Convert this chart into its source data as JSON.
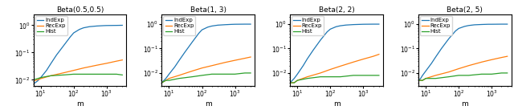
{
  "subplots": [
    {
      "title": "Beta(0.5,0.5)",
      "ylim": [
        0.006,
        2.5
      ],
      "yticks": [
        0.01,
        0.1,
        1.0
      ],
      "yticklabels": [
        "$10^{-2}$",
        "$10^{-1}$",
        "$10^0$"
      ],
      "IndExp": {
        "x": [
          6,
          8,
          10,
          15,
          20,
          30,
          50,
          80,
          100,
          150,
          200,
          300,
          500,
          800,
          1000,
          2000,
          3000
        ],
        "y": [
          0.007,
          0.009,
          0.012,
          0.022,
          0.038,
          0.08,
          0.18,
          0.38,
          0.52,
          0.7,
          0.8,
          0.88,
          0.93,
          0.96,
          0.97,
          0.98,
          0.99
        ]
      },
      "RecExp": {
        "x": [
          6,
          8,
          10,
          20,
          50,
          100,
          200,
          500,
          1000,
          2000,
          3000
        ],
        "y": [
          0.009,
          0.01,
          0.011,
          0.014,
          0.018,
          0.022,
          0.027,
          0.034,
          0.04,
          0.048,
          0.053
        ]
      },
      "Hist": {
        "x": [
          6,
          8,
          10,
          20,
          50,
          100,
          200,
          500,
          1000,
          2000,
          3000
        ],
        "y": [
          0.01,
          0.011,
          0.012,
          0.014,
          0.015,
          0.016,
          0.016,
          0.016,
          0.016,
          0.016,
          0.015
        ]
      }
    },
    {
      "title": "Beta(1, 3)",
      "ylim": [
        0.003,
        2.5
      ],
      "yticks": [
        0.01,
        0.1,
        1.0
      ],
      "yticklabels": [
        "$10^{-2}$",
        "$10^{-1}$",
        "$10^0$"
      ],
      "IndExp": {
        "x": [
          6,
          7,
          8,
          10,
          15,
          20,
          30,
          50,
          80,
          100,
          150,
          200,
          300,
          500,
          800,
          1000,
          2000,
          3000
        ],
        "y": [
          0.004,
          0.005,
          0.006,
          0.009,
          0.018,
          0.032,
          0.07,
          0.18,
          0.42,
          0.58,
          0.75,
          0.83,
          0.9,
          0.94,
          0.97,
          0.98,
          0.99,
          0.99
        ]
      },
      "RecExp": {
        "x": [
          6,
          8,
          10,
          20,
          50,
          100,
          200,
          500,
          1000,
          2000,
          3000
        ],
        "y": [
          0.004,
          0.005,
          0.006,
          0.008,
          0.012,
          0.016,
          0.02,
          0.027,
          0.033,
          0.04,
          0.045
        ]
      },
      "Hist": {
        "x": [
          6,
          8,
          10,
          20,
          50,
          100,
          200,
          500,
          1000,
          2000,
          3000
        ],
        "y": [
          0.004,
          0.005,
          0.005,
          0.006,
          0.007,
          0.008,
          0.009,
          0.009,
          0.009,
          0.01,
          0.01
        ]
      }
    },
    {
      "title": "Beta(2, 2)",
      "ylim": [
        0.003,
        2.5
      ],
      "yticks": [
        0.01,
        0.1,
        1.0
      ],
      "yticklabels": [
        "$10^{-2}$",
        "$10^{-1}$",
        "$10^0$"
      ],
      "IndExp": {
        "x": [
          6,
          7,
          8,
          10,
          15,
          20,
          30,
          50,
          80,
          100,
          150,
          200,
          300,
          500,
          800,
          1000,
          2000,
          3000
        ],
        "y": [
          0.004,
          0.005,
          0.006,
          0.009,
          0.02,
          0.038,
          0.085,
          0.22,
          0.48,
          0.62,
          0.78,
          0.85,
          0.91,
          0.95,
          0.97,
          0.98,
          0.99,
          0.99
        ]
      },
      "RecExp": {
        "x": [
          6,
          8,
          10,
          20,
          50,
          100,
          200,
          500,
          1000,
          2000,
          3000
        ],
        "y": [
          0.004,
          0.004,
          0.005,
          0.007,
          0.01,
          0.014,
          0.019,
          0.028,
          0.037,
          0.048,
          0.058
        ]
      },
      "Hist": {
        "x": [
          6,
          8,
          10,
          20,
          50,
          100,
          200,
          500,
          1000,
          2000,
          3000
        ],
        "y": [
          0.004,
          0.004,
          0.005,
          0.006,
          0.007,
          0.007,
          0.007,
          0.008,
          0.008,
          0.008,
          0.008
        ]
      }
    },
    {
      "title": "Beta(2, 5)",
      "ylim": [
        0.003,
        2.5
      ],
      "yticks": [
        0.01,
        0.1,
        1.0
      ],
      "yticklabels": [
        "$10^{-2}$",
        "$10^{-1}$",
        "$10^0$"
      ],
      "IndExp": {
        "x": [
          6,
          7,
          8,
          10,
          15,
          20,
          30,
          50,
          80,
          100,
          150,
          200,
          300,
          500,
          800,
          1000,
          2000,
          3000
        ],
        "y": [
          0.005,
          0.006,
          0.008,
          0.012,
          0.025,
          0.045,
          0.1,
          0.25,
          0.52,
          0.66,
          0.8,
          0.87,
          0.93,
          0.96,
          0.98,
          0.98,
          0.99,
          0.99
        ]
      },
      "RecExp": {
        "x": [
          6,
          8,
          10,
          20,
          50,
          100,
          200,
          500,
          1000,
          2000,
          3000
        ],
        "y": [
          0.005,
          0.005,
          0.006,
          0.008,
          0.011,
          0.015,
          0.02,
          0.028,
          0.035,
          0.043,
          0.048
        ]
      },
      "Hist": {
        "x": [
          6,
          8,
          10,
          20,
          50,
          100,
          200,
          500,
          1000,
          2000,
          3000
        ],
        "y": [
          0.005,
          0.005,
          0.006,
          0.006,
          0.007,
          0.008,
          0.008,
          0.009,
          0.009,
          0.01,
          0.01
        ]
      }
    }
  ],
  "colors": {
    "IndExp": "#1f77b4",
    "RecExp": "#ff7f0e",
    "Hist": "#2ca02c"
  },
  "xlabel": "m",
  "xlim": [
    6,
    4000
  ],
  "xticks": [
    10,
    100,
    1000
  ],
  "xticklabels": [
    "$10^1$",
    "$10^2$",
    "$10^3$"
  ]
}
